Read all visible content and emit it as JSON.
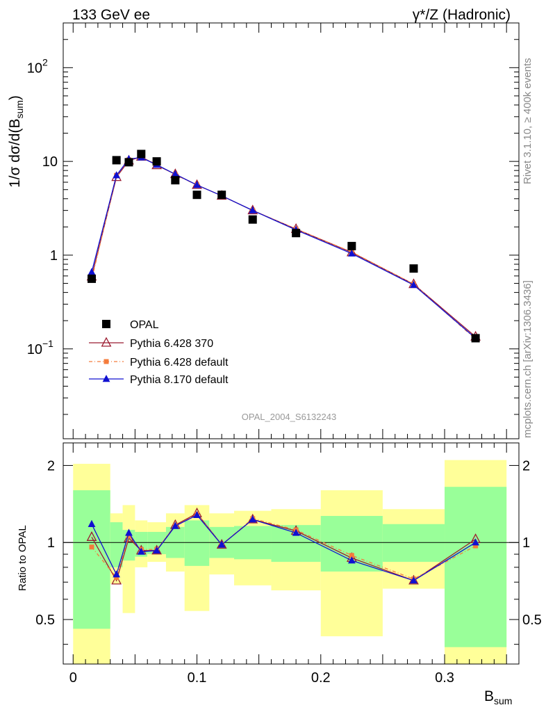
{
  "header": {
    "left": "133 GeV ee",
    "right": "γ*/Z (Hadronic)"
  },
  "side_labels": {
    "rivet": "Rivet 3.1.10, ≥ 400k events",
    "mcplots": "mcplots.cern.ch [arXiv:1306.3436]"
  },
  "analysis_tag": "OPAL_2004_S6132243",
  "colors": {
    "opal": "#000000",
    "py6_370": "#9b1b30",
    "py6_default": "#f47c3c",
    "py8_default": "#1010d0",
    "band_outer": "#ffff99",
    "band_inner": "#99ff99"
  },
  "chart_data": [
    {
      "type": "scatter",
      "panel": "main",
      "ylabel": "1/σ dσ/d(B_sum)",
      "yscale": "log",
      "ylim": [
        0.011,
        300
      ],
      "xlim": [
        -0.008,
        0.36
      ],
      "y_ticks": [
        {
          "value": 0.1,
          "label": "10",
          "exp": "−1"
        },
        {
          "value": 1,
          "label": "1"
        },
        {
          "value": 10,
          "label": "10"
        },
        {
          "value": 100,
          "label": "10",
          "exp": "2"
        }
      ],
      "legend_placement": "lower-left",
      "x": [
        0.015,
        0.035,
        0.045,
        0.055,
        0.0675,
        0.0825,
        0.1,
        0.12,
        0.145,
        0.18,
        0.225,
        0.275,
        0.325
      ],
      "series": [
        {
          "name": "OPAL",
          "marker": "square",
          "values": [
            0.56,
            10.3,
            9.8,
            12.0,
            10.0,
            6.3,
            4.4,
            4.4,
            2.4,
            1.72,
            1.25,
            0.72,
            0.13
          ]
        },
        {
          "name": "Pythia 6.428 370",
          "marker": "open-triangle",
          "values": [
            0.59,
            6.8,
            10.2,
            11.2,
            9.1,
            7.3,
            5.6,
            4.3,
            3.0,
            1.9,
            1.07,
            0.49,
            0.135
          ]
        },
        {
          "name": "Pythia 6.428 default",
          "marker": "small-square",
          "dashed": true,
          "values": [
            0.55,
            7.1,
            10.4,
            11.1,
            9.3,
            7.2,
            5.6,
            4.3,
            3.0,
            1.9,
            1.08,
            0.49,
            0.127
          ]
        },
        {
          "name": "Pythia 8.170 default",
          "marker": "filled-triangle",
          "values": [
            0.66,
            7.1,
            10.6,
            11.0,
            9.2,
            7.3,
            5.6,
            4.3,
            3.0,
            1.86,
            1.04,
            0.48,
            0.13
          ]
        }
      ]
    },
    {
      "type": "line",
      "panel": "ratio",
      "ylabel": "Ratio to OPAL",
      "xlabel": "B_sum",
      "yscale": "log",
      "ylim": [
        0.335,
        2.45
      ],
      "xlim": [
        -0.008,
        0.36
      ],
      "y_ticks": [
        0.5,
        1,
        2
      ],
      "x_ticks": [
        0,
        0.1,
        0.2,
        0.3
      ],
      "reference_line": 1,
      "x": [
        0.015,
        0.035,
        0.045,
        0.055,
        0.0675,
        0.0825,
        0.1,
        0.12,
        0.145,
        0.18,
        0.225,
        0.275,
        0.325
      ],
      "bands": [
        {
          "x0": 0.0,
          "x1": 0.03,
          "outer": [
            0.335,
            2.03
          ],
          "inner": [
            0.46,
            1.6
          ]
        },
        {
          "x0": 0.03,
          "x1": 0.04,
          "outer": [
            0.69,
            1.3
          ],
          "inner": [
            0.8,
            1.2
          ]
        },
        {
          "x0": 0.04,
          "x1": 0.05,
          "outer": [
            0.53,
            1.4
          ],
          "inner": [
            0.85,
            1.12
          ]
        },
        {
          "x0": 0.05,
          "x1": 0.06,
          "outer": [
            0.8,
            1.22
          ],
          "inner": [
            0.88,
            1.1
          ]
        },
        {
          "x0": 0.06,
          "x1": 0.075,
          "outer": [
            0.84,
            1.2
          ],
          "inner": [
            0.9,
            1.1
          ]
        },
        {
          "x0": 0.075,
          "x1": 0.09,
          "outer": [
            0.77,
            1.3
          ],
          "inner": [
            0.87,
            1.15
          ]
        },
        {
          "x0": 0.09,
          "x1": 0.11,
          "outer": [
            0.54,
            1.4
          ],
          "inner": [
            0.81,
            1.22
          ]
        },
        {
          "x0": 0.11,
          "x1": 0.13,
          "outer": [
            0.75,
            1.3
          ],
          "inner": [
            0.87,
            1.15
          ]
        },
        {
          "x0": 0.13,
          "x1": 0.16,
          "outer": [
            0.68,
            1.33
          ],
          "inner": [
            0.86,
            1.16
          ]
        },
        {
          "x0": 0.16,
          "x1": 0.2,
          "outer": [
            0.65,
            1.35
          ],
          "inner": [
            0.84,
            1.17
          ]
        },
        {
          "x0": 0.2,
          "x1": 0.25,
          "outer": [
            0.43,
            1.6
          ],
          "inner": [
            0.77,
            1.27
          ]
        },
        {
          "x0": 0.25,
          "x1": 0.3,
          "outer": [
            0.66,
            1.35
          ],
          "inner": [
            0.84,
            1.18
          ]
        },
        {
          "x0": 0.3,
          "x1": 0.35,
          "outer": [
            0.335,
            2.1
          ],
          "inner": [
            0.39,
            1.65
          ]
        }
      ],
      "series": [
        {
          "name": "Pythia 6.428 370",
          "values": [
            1.05,
            0.71,
            1.04,
            0.93,
            0.93,
            1.17,
            1.3,
            0.98,
            1.23,
            1.11,
            0.87,
            0.71,
            1.03
          ]
        },
        {
          "name": "Pythia 6.428 default",
          "values": [
            0.96,
            0.73,
            1.06,
            0.94,
            0.94,
            1.16,
            1.29,
            0.98,
            1.24,
            1.12,
            0.89,
            0.72,
            0.97
          ]
        },
        {
          "name": "Pythia 8.170 default",
          "values": [
            1.18,
            0.75,
            1.09,
            0.92,
            0.93,
            1.16,
            1.28,
            0.98,
            1.23,
            1.09,
            0.85,
            0.71,
            1.0
          ]
        }
      ]
    }
  ]
}
